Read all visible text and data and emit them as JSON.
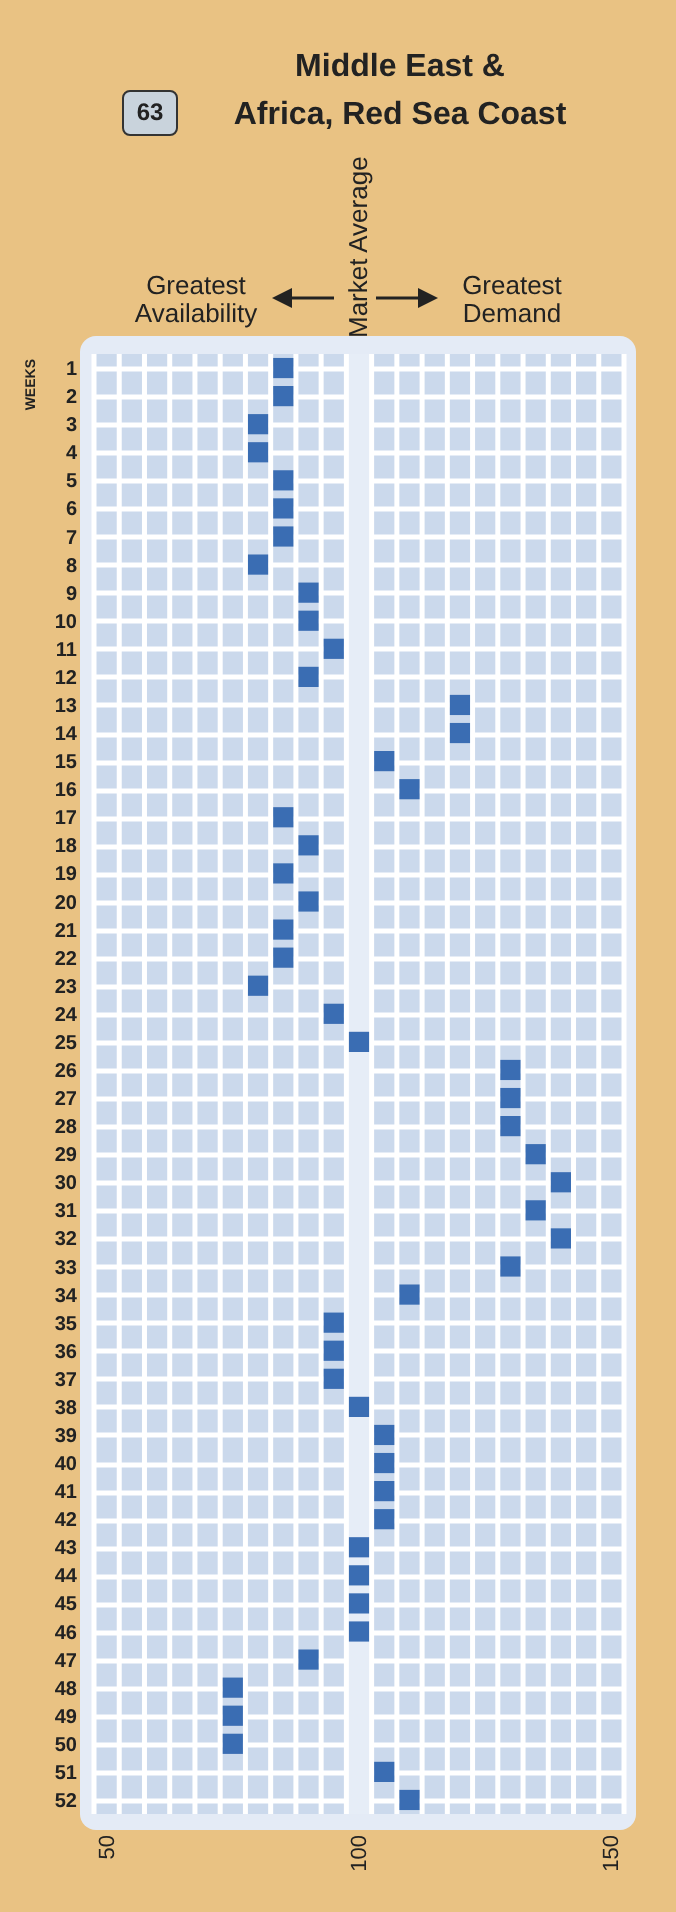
{
  "chart_data": {
    "type": "scatter",
    "title": "Middle East &\nAfrica, Red Sea Coast",
    "ylabel": "WEEKS",
    "annotations": [
      "63",
      "Greatest Availability",
      "Greatest Demand"
    ],
    "orientation": "horizontal",
    "categories": [
      "1",
      "2",
      "3",
      "4",
      "5",
      "6",
      "7",
      "8",
      "9",
      "10",
      "11",
      "12",
      "13",
      "14",
      "15",
      "16",
      "17",
      "18",
      "19",
      "20",
      "21",
      "22",
      "23",
      "24",
      "25",
      "26",
      "27",
      "28",
      "29",
      "30",
      "31",
      "32",
      "33",
      "34",
      "35",
      "36",
      "37",
      "38",
      "39",
      "40",
      "41",
      "42",
      "43",
      "44",
      "45",
      "46",
      "47",
      "48",
      "49",
      "50",
      "51",
      "52"
    ],
    "series": [
      {
        "color": "#3a6db3",
        "values": [
          85,
          85,
          80,
          80,
          85,
          85,
          85,
          80,
          90,
          90,
          95,
          90,
          120,
          120,
          105,
          110,
          85,
          90,
          85,
          90,
          85,
          85,
          80,
          95,
          100,
          130,
          130,
          130,
          135,
          140,
          135,
          140,
          130,
          110,
          95,
          95,
          95,
          100,
          105,
          105,
          105,
          105,
          100,
          100,
          100,
          100,
          90,
          75,
          75,
          75,
          105,
          110
        ]
      }
    ],
    "xlim": [
      47.5,
      152.5
    ],
    "xticks": [
      50,
      100,
      150
    ],
    "grid": true,
    "marker": "square",
    "bands": [
      {
        "axis": "x",
        "from": 97.5,
        "to": 102.5,
        "label": "Market Average",
        "color": "#e6edf7"
      }
    ]
  }
}
